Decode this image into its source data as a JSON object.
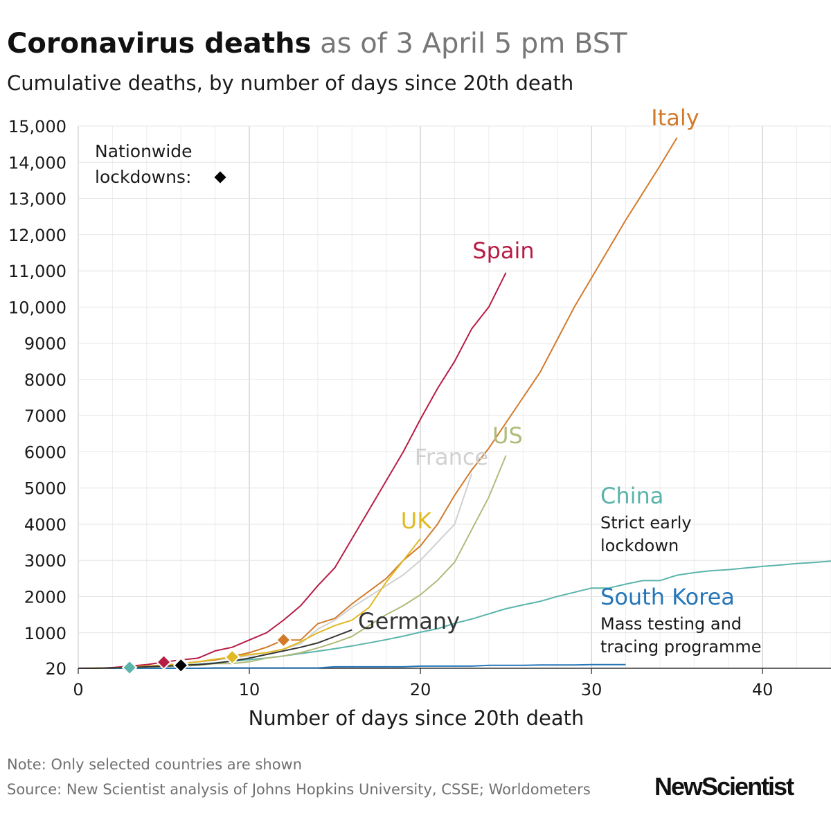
{
  "header": {
    "title_bold": "Coronavirus deaths",
    "title_light": "as of 3 April 5 pm BST",
    "subtitle": "Cumulative deaths, by number of days since 20th death"
  },
  "legend": {
    "line1": "Nationwide",
    "line2": "lockdowns:"
  },
  "footer": {
    "note": "Note: Only selected countries are shown",
    "source": "Source: New Scientist analysis of Johns Hopkins University, CSSE; Worldometers",
    "brand": "NewScientist"
  },
  "chart_data": {
    "type": "line",
    "title": "Coronavirus deaths as of 3 April 5 pm BST",
    "subtitle": "Cumulative deaths, by number of days since 20th death",
    "xlabel": "Number of days since 20th death",
    "ylabel": "",
    "xlim": [
      0,
      44
    ],
    "ylim": [
      20,
      15000
    ],
    "x_ticks": [
      0,
      10,
      20,
      30,
      40
    ],
    "x_tick_labels": [
      "0",
      "10",
      "20",
      "30",
      "40"
    ],
    "y_ticks": [
      20,
      1000,
      2000,
      3000,
      4000,
      5000,
      6000,
      7000,
      8000,
      9000,
      10000,
      11000,
      12000,
      13000,
      14000,
      15000
    ],
    "y_tick_labels": [
      "20",
      "1000",
      "2000",
      "3000",
      "4000",
      "5000",
      "6000",
      "7000",
      "8000",
      "9000",
      "10,000",
      "11,000",
      "12,000",
      "13,000",
      "14,000",
      "15,000"
    ],
    "grid": true,
    "series": [
      {
        "name": "China",
        "color": "#5ab4ac",
        "label": "China",
        "note": [
          "Strict early",
          "lockdown"
        ],
        "lockdown_day": 3,
        "x": [
          0,
          1,
          2,
          3,
          4,
          5,
          6,
          7,
          8,
          9,
          10,
          11,
          12,
          13,
          14,
          15,
          16,
          17,
          18,
          19,
          20,
          21,
          22,
          23,
          24,
          25,
          26,
          27,
          28,
          29,
          30,
          31,
          32,
          33,
          34,
          35,
          36,
          37,
          38,
          39,
          40,
          41,
          42,
          43,
          44
        ],
        "y": [
          20,
          20,
          25,
          40,
          56,
          80,
          106,
          132,
          170,
          213,
          259,
          304,
          361,
          425,
          490,
          562,
          636,
          722,
          811,
          908,
          1016,
          1113,
          1259,
          1380,
          1523,
          1665,
          1770,
          1868,
          2004,
          2118,
          2236,
          2236,
          2345,
          2442,
          2442,
          2592,
          2663,
          2715,
          2744,
          2788,
          2835,
          2870,
          2912,
          2943,
          2981
        ]
      },
      {
        "name": "South Korea",
        "color": "#2676b8",
        "label": "South Korea",
        "note": [
          "Mass testing and",
          "tracing programme"
        ],
        "x": [
          0,
          1,
          2,
          3,
          4,
          5,
          6,
          7,
          8,
          9,
          10,
          11,
          12,
          13,
          14,
          15,
          16,
          17,
          18,
          19,
          20,
          21,
          22,
          23,
          24,
          25,
          26,
          27,
          28,
          29,
          30,
          31,
          32
        ],
        "y": [
          20,
          20,
          20,
          20,
          20,
          20,
          20,
          20,
          30,
          30,
          30,
          30,
          30,
          30,
          30,
          60,
          60,
          60,
          60,
          60,
          80,
          80,
          80,
          80,
          100,
          100,
          100,
          110,
          110,
          110,
          120,
          120,
          120
        ]
      },
      {
        "name": "Italy",
        "color": "#d27a2a",
        "label": "Italy",
        "lockdown_day": 12,
        "x": [
          0,
          1,
          2,
          3,
          4,
          5,
          6,
          7,
          8,
          9,
          10,
          11,
          12,
          13,
          14,
          15,
          16,
          17,
          18,
          19,
          20,
          21,
          22,
          23,
          24,
          25,
          26,
          27,
          28,
          29,
          30,
          31,
          32,
          33,
          34,
          35
        ],
        "y": [
          20,
          25,
          35,
          50,
          80,
          110,
          150,
          200,
          250,
          350,
          450,
          600,
          800,
          800,
          1250,
          1400,
          1800,
          2150,
          2500,
          3000,
          3400,
          4000,
          4800,
          5500,
          6100,
          6800,
          7500,
          8200,
          9100,
          10000,
          10800,
          11600,
          12400,
          13150,
          13900,
          14680
        ]
      },
      {
        "name": "Spain",
        "color": "#b71c45",
        "label": "Spain",
        "lockdown_day": 5,
        "x": [
          0,
          1,
          2,
          3,
          4,
          5,
          6,
          7,
          8,
          9,
          10,
          11,
          12,
          13,
          14,
          15,
          16,
          17,
          18,
          19,
          20,
          21,
          22,
          23,
          24,
          25
        ],
        "y": [
          20,
          20,
          40,
          80,
          120,
          190,
          250,
          300,
          500,
          600,
          800,
          1000,
          1350,
          1750,
          2300,
          2800,
          3600,
          4400,
          5200,
          6000,
          6900,
          7750,
          8500,
          9400,
          10000,
          10950
        ]
      },
      {
        "name": "France",
        "color": "#d0d0d0",
        "label": "France",
        "lockdown_day": 6,
        "x": [
          0,
          1,
          2,
          3,
          4,
          5,
          6,
          7,
          8,
          9,
          10,
          11,
          12,
          13,
          14,
          15,
          16,
          17,
          18,
          19,
          20,
          21,
          22,
          23
        ],
        "y": [
          20,
          25,
          30,
          50,
          80,
          100,
          150,
          200,
          250,
          300,
          370,
          450,
          550,
          700,
          1100,
          1350,
          1700,
          2000,
          2300,
          2600,
          3000,
          3500,
          4000,
          5400
        ]
      },
      {
        "name": "US",
        "color": "#aebc7a",
        "label": "US",
        "x": [
          0,
          1,
          2,
          3,
          4,
          5,
          6,
          7,
          8,
          9,
          10,
          11,
          12,
          13,
          14,
          15,
          16,
          17,
          18,
          19,
          20,
          21,
          22,
          23,
          24,
          25
        ],
        "y": [
          20,
          20,
          30,
          40,
          50,
          60,
          80,
          100,
          150,
          150,
          200,
          300,
          360,
          450,
          580,
          730,
          900,
          1200,
          1500,
          1750,
          2050,
          2450,
          2950,
          3850,
          4750,
          5900
        ]
      },
      {
        "name": "UK",
        "color": "#e1b923",
        "label": "UK",
        "lockdown_day": 9,
        "x": [
          0,
          1,
          2,
          3,
          4,
          5,
          6,
          7,
          8,
          9,
          10,
          11,
          12,
          13,
          14,
          15,
          16,
          17,
          18,
          19,
          20
        ],
        "y": [
          20,
          25,
          30,
          50,
          80,
          100,
          150,
          200,
          270,
          330,
          400,
          450,
          550,
          750,
          1000,
          1200,
          1350,
          1700,
          2400,
          3000,
          3600
        ]
      },
      {
        "name": "Germany",
        "color": "#333333",
        "label": "Germany",
        "lockdown_day": 6,
        "x": [
          0,
          1,
          2,
          3,
          4,
          5,
          6,
          7,
          8,
          9,
          10,
          11,
          12,
          13,
          14,
          15,
          16
        ],
        "y": [
          20,
          20,
          30,
          40,
          60,
          80,
          100,
          120,
          160,
          220,
          300,
          400,
          500,
          600,
          720,
          900,
          1080
        ]
      }
    ]
  }
}
